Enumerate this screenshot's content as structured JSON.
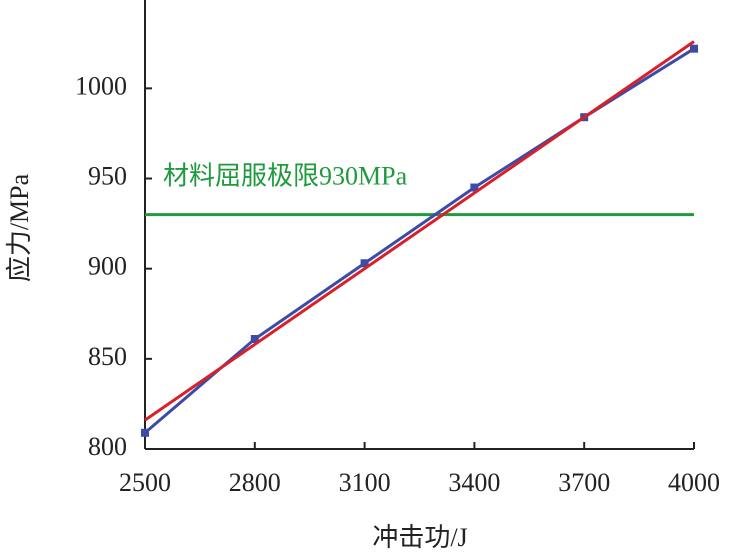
{
  "chart_data": {
    "type": "line",
    "x_label": "冲击功/J",
    "y_label": "应力/MPa",
    "series": [
      {
        "color": "#3b4ba6",
        "marker": "square",
        "x": [
          2500,
          2800,
          3100,
          3400,
          3700,
          4000
        ],
        "values": [
          809,
          861,
          903,
          945,
          984,
          1022
        ]
      },
      {
        "color": "#d8202a",
        "marker": null,
        "x": [
          2500,
          4000
        ],
        "values": [
          816,
          1026
        ]
      }
    ],
    "hlines": [
      {
        "value": 930,
        "color": "#1f9a3e",
        "label": "材料屈服极限930MPa"
      }
    ],
    "xlim": [
      2500,
      4000
    ],
    "ylim": [
      800,
      1049
    ],
    "xticks": [
      2500,
      2800,
      3100,
      3400,
      3700,
      4000
    ],
    "yticks": [
      800,
      850,
      900,
      950,
      1000
    ],
    "grid": false
  }
}
